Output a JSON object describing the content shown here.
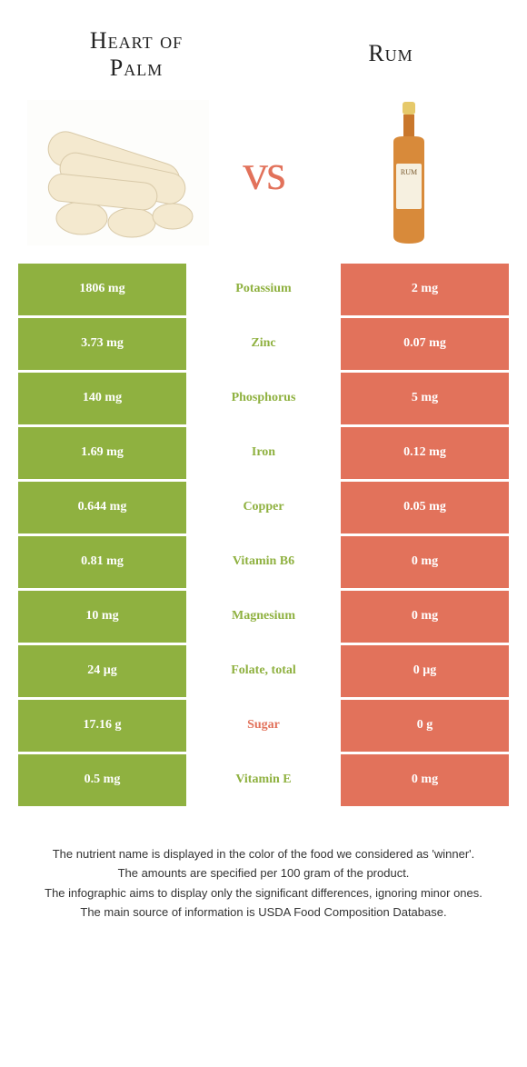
{
  "header": {
    "left_title_line1": "Heart of",
    "left_title_line2": "Palm",
    "right_title": "Rum",
    "vs": "vs"
  },
  "colors": {
    "left_bg": "#8fb140",
    "right_bg": "#e2725b",
    "left_text": "#8fb140",
    "right_text": "#e2725b",
    "neutral": "#333333"
  },
  "rows": [
    {
      "left": "1806 mg",
      "label": "Potassium",
      "right": "2 mg",
      "label_color": "#8fb140"
    },
    {
      "left": "3.73 mg",
      "label": "Zinc",
      "right": "0.07 mg",
      "label_color": "#8fb140"
    },
    {
      "left": "140 mg",
      "label": "Phosphorus",
      "right": "5 mg",
      "label_color": "#8fb140"
    },
    {
      "left": "1.69 mg",
      "label": "Iron",
      "right": "0.12 mg",
      "label_color": "#8fb140"
    },
    {
      "left": "0.644 mg",
      "label": "Copper",
      "right": "0.05 mg",
      "label_color": "#8fb140"
    },
    {
      "left": "0.81 mg",
      "label": "Vitamin B6",
      "right": "0 mg",
      "label_color": "#8fb140"
    },
    {
      "left": "10 mg",
      "label": "Magnesium",
      "right": "0 mg",
      "label_color": "#8fb140"
    },
    {
      "left": "24 µg",
      "label": "Folate, total",
      "right": "0 µg",
      "label_color": "#8fb140"
    },
    {
      "left": "17.16 g",
      "label": "Sugar",
      "right": "0 g",
      "label_color": "#e2725b"
    },
    {
      "left": "0.5 mg",
      "label": "Vitamin E",
      "right": "0 mg",
      "label_color": "#8fb140"
    }
  ],
  "footer": {
    "line1": "The nutrient name is displayed in the color of the food we considered as 'winner'.",
    "line2": "The amounts are specified per 100 gram of the product.",
    "line3": "The infographic aims to display only the significant differences, ignoring minor ones.",
    "line4": "The main source of information is USDA Food Composition Database."
  }
}
